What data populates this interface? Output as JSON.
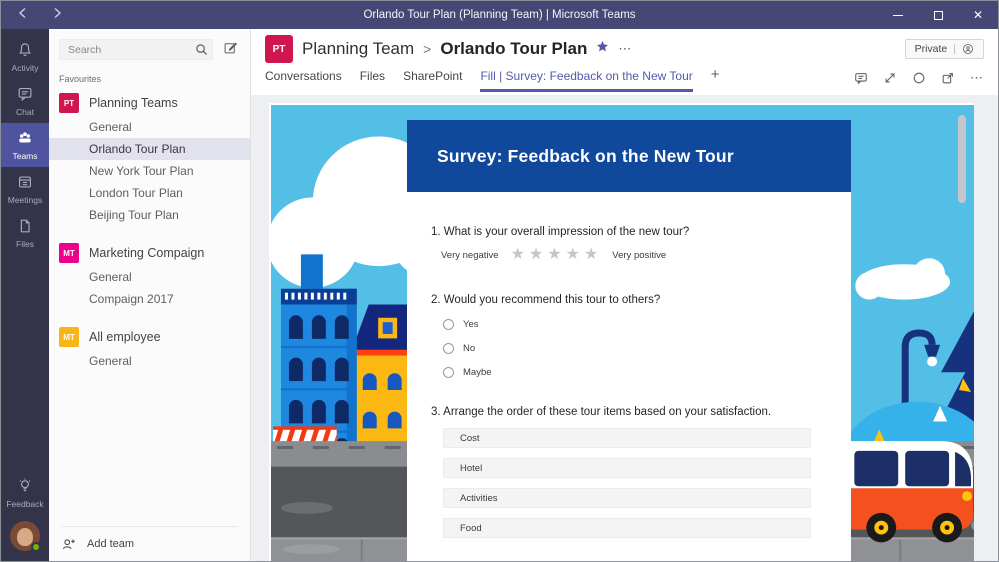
{
  "titlebar": {
    "title": "Orlando Tour Plan (Planning Team) | Microsoft Teams"
  },
  "rail": {
    "items": [
      {
        "label": "Activity"
      },
      {
        "label": "Chat"
      },
      {
        "label": "Teams"
      },
      {
        "label": "Meetings"
      },
      {
        "label": "Files"
      }
    ],
    "active_item": "Teams",
    "feedback_label": "Feedback"
  },
  "sidebar": {
    "search_placeholder": "Search",
    "favourites_label": "Favourites",
    "teams": [
      {
        "initials": "PT",
        "color": "#d0164e",
        "name": "Planning Teams",
        "channels": [
          "General",
          "Orlando Tour Plan",
          "New York Tour Plan",
          "London Tour Plan",
          "Beijing Tour Plan"
        ],
        "selected_channel": "Orlando Tour Plan"
      },
      {
        "initials": "MT",
        "color": "#ec008c",
        "name": "Marketing Compaign",
        "channels": [
          "General",
          "Compaign 2017"
        ]
      },
      {
        "initials": "MT",
        "color": "#f8b517",
        "name": "All employee",
        "channels": [
          "General"
        ]
      }
    ],
    "add_team_label": "Add team"
  },
  "header": {
    "team_badge": "PT",
    "badge_color": "#d0164e",
    "team_name": "Planning Team",
    "separator": ">",
    "channel_name": "Orlando Tour Plan",
    "more_label": "⋯",
    "private_label": "Private",
    "private_divider": "|",
    "tabs": [
      "Conversations",
      "Files",
      "SharePoint"
    ],
    "active_tab": "Fill | Survey: Feedback on the New Tour",
    "add_tab_label": "+",
    "toolbar_icons": [
      "chat-bubble-icon",
      "expand-icon",
      "refresh-icon",
      "popout-icon",
      "more-icon"
    ]
  },
  "survey": {
    "title": "Survey: Feedback on the New Tour",
    "q1": {
      "label": "1. What is your overall impression of the new tour?",
      "min_label": "Very negative",
      "max_label": "Very positive",
      "star_count": 5,
      "star_glyph": "★"
    },
    "q2": {
      "label": "2. Would you recommend this tour to others?",
      "options": [
        "Yes",
        "No",
        "Maybe"
      ]
    },
    "q3": {
      "label": "3. Arrange the order of these tour items based on your satisfaction.",
      "items": [
        "Cost",
        "Hotel",
        "Activities",
        "Food"
      ]
    }
  },
  "colors": {
    "titlebar": "#464775",
    "rail": "#33344a",
    "rail_active": "#4f549f",
    "accent": "#5558ad",
    "banner_blue": "#10489c",
    "sky": "#54bfe6",
    "selected_row": "#e2e2ee"
  }
}
